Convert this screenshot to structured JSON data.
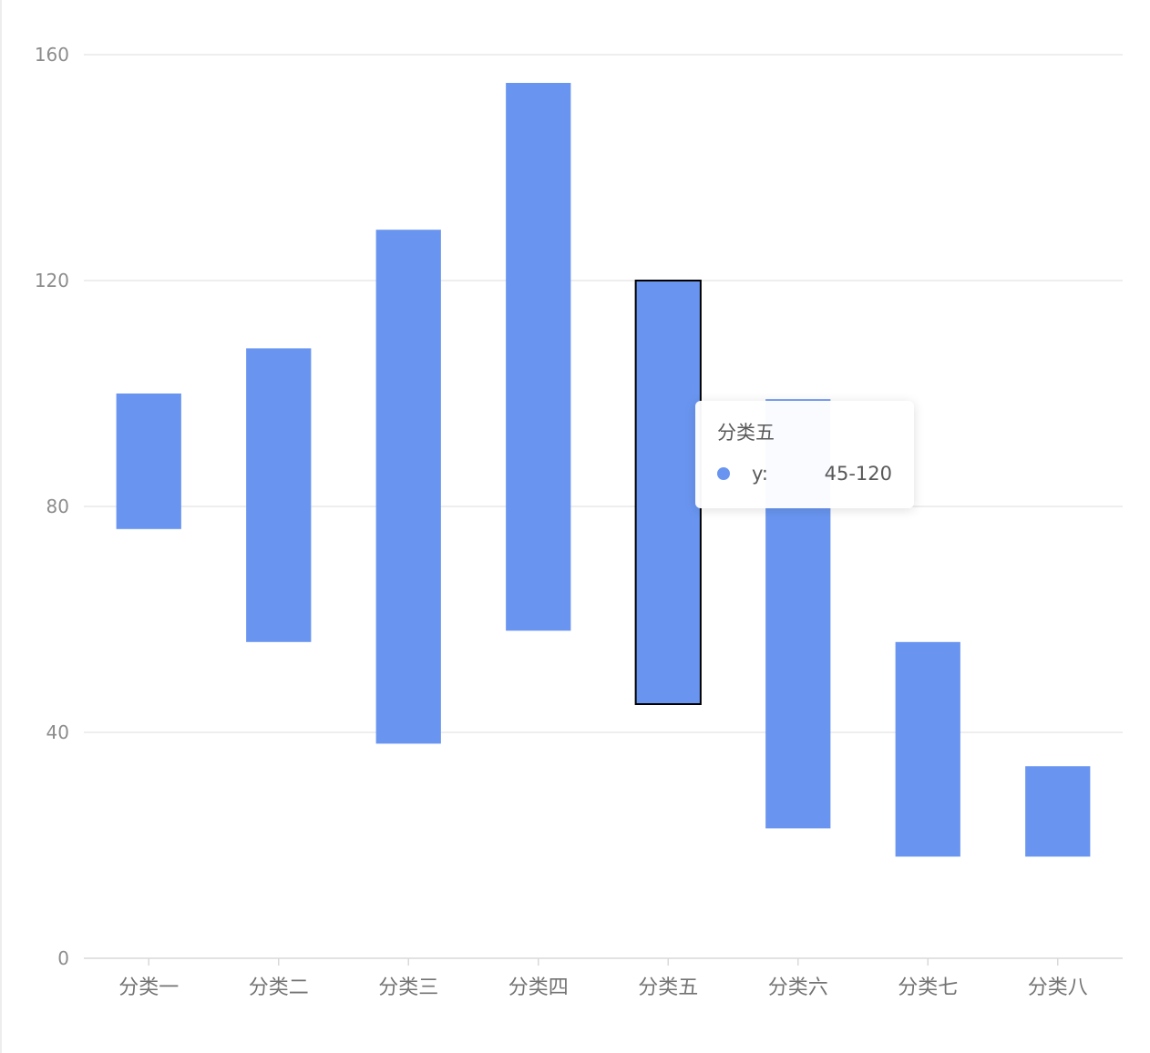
{
  "chart_data": {
    "type": "bar",
    "subtype": "range",
    "categories": [
      "分类一",
      "分类二",
      "分类三",
      "分类四",
      "分类五",
      "分类六",
      "分类七",
      "分类八"
    ],
    "series": [
      {
        "name": "y",
        "ranges": [
          [
            76,
            100
          ],
          [
            56,
            108
          ],
          [
            38,
            129
          ],
          [
            58,
            155
          ],
          [
            45,
            120
          ],
          [
            23,
            99
          ],
          [
            18,
            56
          ],
          [
            18,
            34
          ]
        ]
      }
    ],
    "ylim": [
      0,
      160
    ],
    "yticks": [
      0,
      40,
      80,
      120,
      160
    ],
    "grid": true,
    "highlighted_index": 4
  },
  "colors": {
    "bar": "#6995f0",
    "grid": "#e8e8e8",
    "axis": "#d9d9d9",
    "highlight_stroke": "#000000"
  },
  "tooltip": {
    "title": "分类五",
    "name": "y:",
    "value": "45-120"
  }
}
